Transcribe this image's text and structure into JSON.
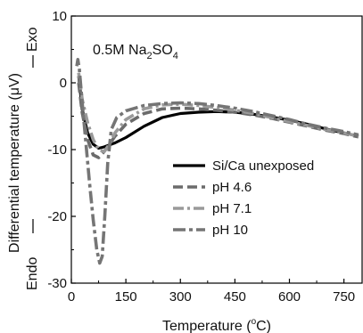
{
  "chart_data": {
    "type": "line",
    "xlabel": "Temperature (",
    "xlabel_sup": "o",
    "xlabel_tail": "C)",
    "ylabel": "Differential temperature (μV)",
    "exo_label": "Exo",
    "endo_label": "Endo",
    "xlim": [
      0,
      800
    ],
    "ylim": [
      -30,
      10
    ],
    "xticks": [
      "0",
      "150",
      "300",
      "450",
      "600",
      "750"
    ],
    "yticks": [
      "-30",
      "-20",
      "-10",
      "0",
      "10"
    ],
    "annotation": {
      "prefix": "0.5M  Na",
      "sub1": "2",
      "mid": "SO",
      "sub2": "4"
    },
    "legend_position": "right",
    "series": [
      {
        "name": "Si/Ca unexposed",
        "color": "#000000",
        "dash": "solid",
        "x": [
          20,
          30,
          45,
          60,
          75,
          90,
          105,
          120,
          150,
          200,
          250,
          300,
          350,
          400,
          450,
          500,
          550,
          600,
          650,
          700,
          750,
          790
        ],
        "y": [
          1,
          -4,
          -7.5,
          -9.2,
          -9.8,
          -9.6,
          -9.3,
          -9,
          -8.2,
          -6.5,
          -5.2,
          -4.6,
          -4.4,
          -4.3,
          -4.4,
          -4.7,
          -5.1,
          -5.6,
          -6.2,
          -6.9,
          -7.5,
          -8
        ]
      },
      {
        "name": "pH 4.6",
        "color": "#6b6b6b",
        "dash": "dash",
        "x": [
          20,
          30,
          45,
          60,
          75,
          90,
          105,
          120,
          150,
          200,
          250,
          300,
          350,
          400,
          450,
          500,
          550,
          600,
          650,
          700,
          750,
          790
        ],
        "y": [
          0,
          -4.5,
          -8.5,
          -10.8,
          -11.2,
          -10.3,
          -9.2,
          -8,
          -6.2,
          -4.6,
          -3.9,
          -3.8,
          -3.9,
          -4.1,
          -4.4,
          -4.8,
          -5.3,
          -5.9,
          -6.5,
          -7.1,
          -7.6,
          -8.1
        ]
      },
      {
        "name": "pH 7.1",
        "color": "#9a9a9a",
        "dash": "dashdot",
        "x": [
          20,
          30,
          45,
          60,
          75,
          90,
          105,
          120,
          150,
          200,
          250,
          300,
          350,
          400,
          450,
          500,
          550,
          600,
          650,
          700,
          750,
          790
        ],
        "y": [
          1.5,
          -2.5,
          -6,
          -8.5,
          -10,
          -10.3,
          -9.2,
          -7.5,
          -5.5,
          -3.9,
          -3.3,
          -3.2,
          -3.4,
          -3.7,
          -4.1,
          -4.6,
          -5.2,
          -5.8,
          -6.4,
          -7,
          -7.5,
          -8
        ]
      },
      {
        "name": "pH 10",
        "color": "#757575",
        "dash": "dashdotlong",
        "x": [
          15,
          18,
          22,
          30,
          40,
          50,
          60,
          70,
          78,
          85,
          92,
          100,
          110,
          125,
          150,
          200,
          250,
          300,
          350,
          400,
          450,
          500,
          550,
          600,
          650,
          700,
          750,
          790
        ],
        "y": [
          2.5,
          3.5,
          2,
          -3,
          -9,
          -15,
          -20.5,
          -25,
          -27,
          -26,
          -20,
          -12,
          -7,
          -5.2,
          -4.2,
          -3.4,
          -3.1,
          -3,
          -3.1,
          -3.4,
          -3.8,
          -4.3,
          -4.9,
          -5.5,
          -6.2,
          -6.8,
          -7.3,
          -7.8
        ]
      }
    ]
  }
}
